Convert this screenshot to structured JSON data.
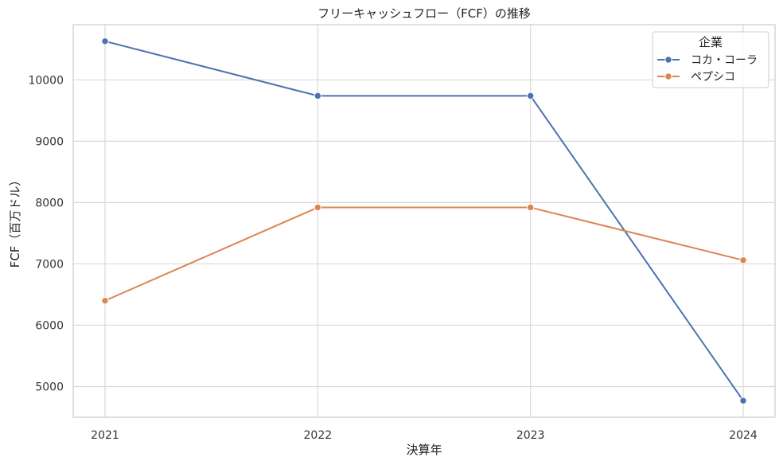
{
  "chart_data": {
    "type": "line",
    "title": "フリーキャッシュフロー（FCF）の推移",
    "xlabel": "決算年",
    "ylabel": "FCF（百万ドル）",
    "x": [
      "2021",
      "2022",
      "2023",
      "2024"
    ],
    "ylim": [
      4500,
      10900
    ],
    "yticks": [
      5000,
      6000,
      7000,
      8000,
      9000,
      10000
    ],
    "grid": true,
    "legend": {
      "title": "企業",
      "placement": "top-right"
    },
    "series": [
      {
        "name": "コカ・コーラ",
        "color": "#4c72b0",
        "values": [
          10630,
          9740,
          9740,
          4770
        ]
      },
      {
        "name": "ペプシコ",
        "color": "#dd8452",
        "values": [
          6400,
          7920,
          7920,
          7060
        ]
      }
    ]
  }
}
